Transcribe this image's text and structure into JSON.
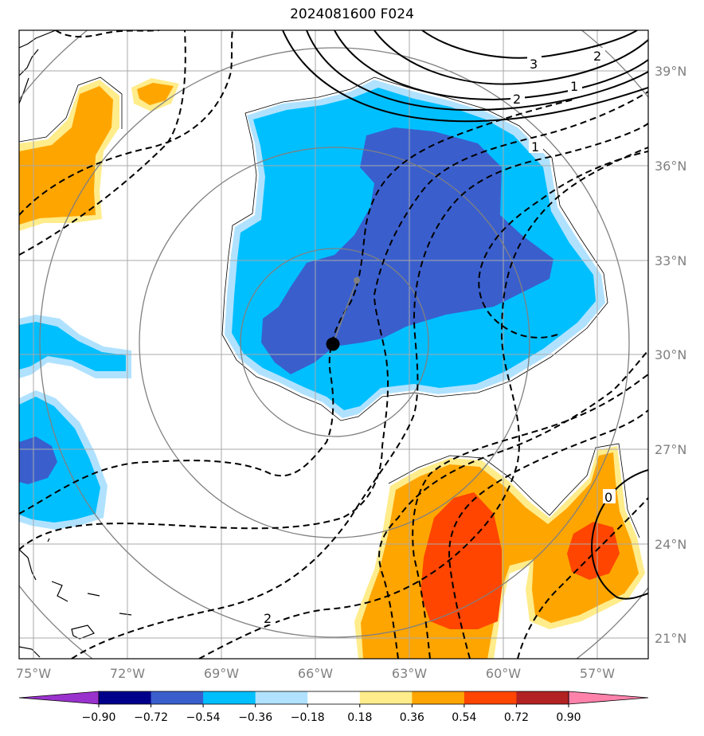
{
  "title": "2024081600 F024",
  "map": {
    "lat_labels": [
      "39°N",
      "36°N",
      "33°N",
      "30°N",
      "27°N",
      "24°N",
      "21°N"
    ],
    "lon_labels": [
      "75°W",
      "72°W",
      "69°W",
      "66°W",
      "63°W",
      "60°W",
      "57°W"
    ],
    "contour_labels": [
      "3",
      "2",
      "2",
      "1",
      "1",
      "0",
      "2"
    ],
    "storm_center": {
      "lat": 30.3,
      "lon": -65.4
    }
  },
  "colorbar": {
    "ticks": [
      "−0.90",
      "−0.72",
      "−0.54",
      "−0.36",
      "−0.18",
      "0.18",
      "0.36",
      "0.54",
      "0.72",
      "0.90"
    ],
    "colors": [
      "#9a32cd",
      "#00008b",
      "#3a5fcd",
      "#00bfff",
      "#b0e2ff",
      "#ffffff",
      "#ffec8b",
      "#ffa500",
      "#ff4500",
      "#b22222",
      "#ff82ab"
    ]
  }
}
